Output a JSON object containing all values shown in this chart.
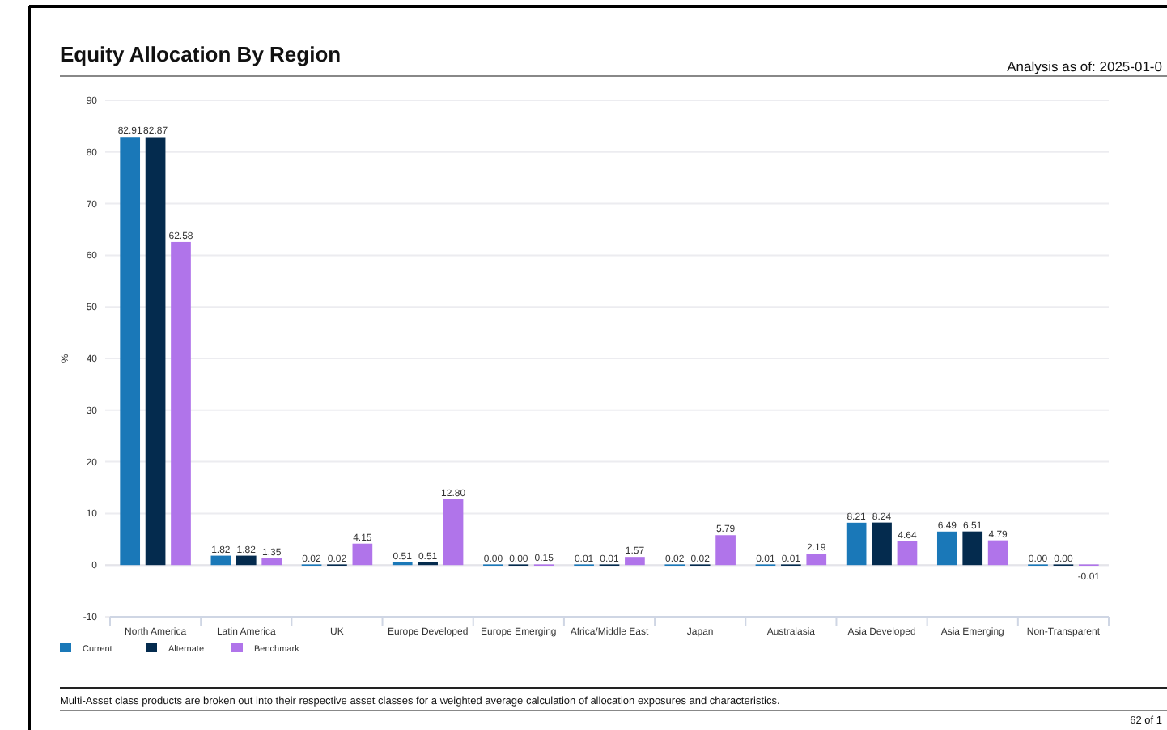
{
  "chart_data": {
    "type": "bar",
    "title": "Equity Allocation By Region",
    "ylabel": "%",
    "categories": [
      "North America",
      "Latin America",
      "UK",
      "Europe Developed",
      "Europe Emerging",
      "Africa/Middle East",
      "Japan",
      "Australasia",
      "Asia Developed",
      "Asia Emerging",
      "Non-Transparent"
    ],
    "series": [
      {
        "name": "Current",
        "color": "#1a78b8",
        "values": [
          82.91,
          1.82,
          0.02,
          0.51,
          0,
          0.01,
          0.02,
          0.01,
          8.21,
          6.49,
          0
        ],
        "value_labels": [
          "82.91",
          "1.82",
          "0.02",
          "0.51",
          "0.00",
          "0.01",
          "0.02",
          "0.01",
          "8.21",
          "6.49",
          "0.00"
        ]
      },
      {
        "name": "Alternate",
        "color": "#042b4e",
        "values": [
          82.87,
          1.82,
          0.02,
          0.51,
          0,
          0.01,
          0.02,
          0.01,
          8.24,
          6.51,
          0
        ],
        "value_labels": [
          "82.87",
          "1.82",
          "0.02",
          "0.51",
          "0.00",
          "0.01",
          "0.02",
          "0.01",
          "8.24",
          "6.51",
          "0.00"
        ]
      },
      {
        "name": "Benchmark",
        "color": "#b074ea",
        "values": [
          62.58,
          1.35,
          4.15,
          12.8,
          0.15,
          1.57,
          5.79,
          2.19,
          4.64,
          4.79,
          -0.01
        ],
        "value_labels": [
          "62.58",
          "1.35",
          "4.15",
          "12.80",
          "0.15",
          "1.57",
          "5.79",
          "2.19",
          "4.64",
          "4.79",
          "-0.01"
        ]
      }
    ],
    "ylim": [
      -10,
      90
    ],
    "yticks": [
      -10,
      0,
      10,
      20,
      30,
      40,
      50,
      60,
      70,
      80,
      90
    ],
    "grid": "y",
    "legend": "bottom left",
    "annotations": [
      "Analysis as of:  2025-01-0",
      "Multi-Asset class products are broken out into their respective asset classes for a weighted average calculation of allocation exposures and characteristics.",
      "62 of 1"
    ]
  }
}
